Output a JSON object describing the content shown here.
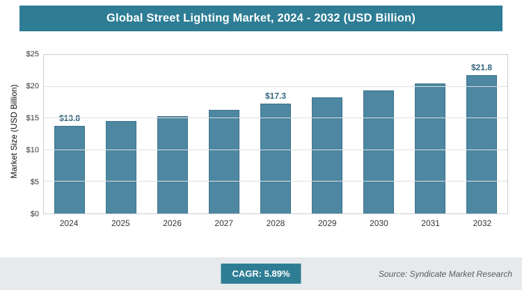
{
  "header": {
    "title": "Global Street Lighting Market, 2024 - 2032 (USD Billion)"
  },
  "chart_data": {
    "type": "bar",
    "title": "Global Street Lighting Market, 2024 - 2032 (USD Billion)",
    "categories": [
      "2024",
      "2025",
      "2026",
      "2027",
      "2028",
      "2029",
      "2030",
      "2031",
      "2032"
    ],
    "values": [
      13.8,
      14.6,
      15.4,
      16.3,
      17.3,
      18.3,
      19.4,
      20.5,
      21.8
    ],
    "data_labels": [
      "$13.8",
      "",
      "",
      "",
      "$17.3",
      "",
      "",
      "",
      "$21.8"
    ],
    "xlabel": "",
    "ylabel": "Market Size (USD Billion)",
    "ylim": [
      0,
      25
    ],
    "ytick_step": 5,
    "ytick_labels": [
      "$0",
      "$5",
      "$10",
      "$15",
      "$20",
      "$25"
    ],
    "grid": true,
    "legend": "none",
    "bar_color": "#4d87a1"
  },
  "footer": {
    "cagr_label": "CAGR: 5.89%",
    "source": "Source: Syndicate Market Research"
  },
  "colors": {
    "header_bg": "#2e7d95",
    "bar": "#4d87a1",
    "badge_bg": "#2e7d95",
    "footer_bg": "#e7eaec"
  }
}
